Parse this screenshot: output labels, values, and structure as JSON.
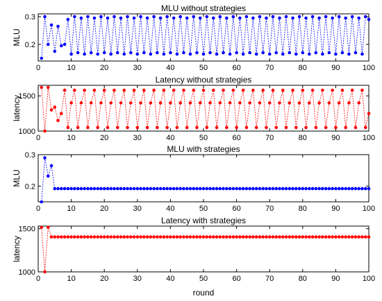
{
  "figure": {
    "xlabel": "round"
  },
  "chart_data": [
    {
      "type": "line",
      "title": "MLU without strategies",
      "ylabel": "MLU",
      "xlabel": "",
      "color": "#0000ff",
      "xlim": [
        0,
        100
      ],
      "ylim": [
        0.14,
        0.31
      ],
      "xticks": [
        0,
        10,
        20,
        30,
        40,
        50,
        60,
        70,
        80,
        90,
        100
      ],
      "yticks": [
        0.2,
        0.3
      ],
      "yticklabels": [
        "0.2",
        "0.3"
      ],
      "x": [
        1,
        2,
        3,
        4,
        5,
        6,
        7,
        8,
        9,
        10,
        11,
        12,
        13,
        14,
        15,
        16,
        17,
        18,
        19,
        20,
        21,
        22,
        23,
        24,
        25,
        26,
        27,
        28,
        29,
        30,
        31,
        32,
        33,
        34,
        35,
        36,
        37,
        38,
        39,
        40,
        41,
        42,
        43,
        44,
        45,
        46,
        47,
        48,
        49,
        50,
        51,
        52,
        53,
        54,
        55,
        56,
        57,
        58,
        59,
        60,
        61,
        62,
        63,
        64,
        65,
        66,
        67,
        68,
        69,
        70,
        71,
        72,
        73,
        74,
        75,
        76,
        77,
        78,
        79,
        80,
        81,
        82,
        83,
        84,
        85,
        86,
        87,
        88,
        89,
        90,
        91,
        92,
        93,
        94,
        95,
        96,
        97,
        98,
        99,
        100
      ],
      "values": [
        0.15,
        0.3,
        0.2,
        0.27,
        0.175,
        0.265,
        0.195,
        0.2,
        0.29,
        0.165,
        0.3,
        0.17,
        0.295,
        0.165,
        0.3,
        0.17,
        0.295,
        0.165,
        0.3,
        0.17,
        0.295,
        0.165,
        0.3,
        0.17,
        0.295,
        0.165,
        0.3,
        0.17,
        0.295,
        0.165,
        0.3,
        0.17,
        0.295,
        0.165,
        0.3,
        0.17,
        0.295,
        0.165,
        0.3,
        0.17,
        0.295,
        0.165,
        0.3,
        0.17,
        0.295,
        0.165,
        0.3,
        0.17,
        0.295,
        0.165,
        0.3,
        0.17,
        0.295,
        0.165,
        0.3,
        0.17,
        0.295,
        0.165,
        0.3,
        0.17,
        0.295,
        0.165,
        0.3,
        0.17,
        0.295,
        0.165,
        0.3,
        0.17,
        0.295,
        0.165,
        0.3,
        0.17,
        0.295,
        0.165,
        0.3,
        0.17,
        0.295,
        0.165,
        0.3,
        0.17,
        0.295,
        0.165,
        0.3,
        0.17,
        0.295,
        0.165,
        0.3,
        0.17,
        0.295,
        0.165,
        0.3,
        0.17,
        0.295,
        0.165,
        0.3,
        0.17,
        0.295,
        0.165,
        0.3,
        0.29
      ]
    },
    {
      "type": "line",
      "title": "Latency without strategies",
      "ylabel": "latency",
      "xlabel": "",
      "color": "#ff0000",
      "xlim": [
        0,
        100
      ],
      "ylim": [
        1000,
        1650
      ],
      "xticks": [
        0,
        10,
        20,
        30,
        40,
        50,
        60,
        70,
        80,
        90,
        100
      ],
      "yticks": [
        1000,
        1500
      ],
      "yticklabels": [
        "1000",
        "1500"
      ],
      "x": [
        1,
        2,
        3,
        4,
        5,
        6,
        7,
        8,
        9,
        10,
        11,
        12,
        13,
        14,
        15,
        16,
        17,
        18,
        19,
        20,
        21,
        22,
        23,
        24,
        25,
        26,
        27,
        28,
        29,
        30,
        31,
        32,
        33,
        34,
        35,
        36,
        37,
        38,
        39,
        40,
        41,
        42,
        43,
        44,
        45,
        46,
        47,
        48,
        49,
        50,
        51,
        52,
        53,
        54,
        55,
        56,
        57,
        58,
        59,
        60,
        61,
        62,
        63,
        64,
        65,
        66,
        67,
        68,
        69,
        70,
        71,
        72,
        73,
        74,
        75,
        76,
        77,
        78,
        79,
        80,
        81,
        82,
        83,
        84,
        85,
        86,
        87,
        88,
        89,
        90,
        91,
        92,
        93,
        94,
        95,
        96,
        97,
        98,
        99,
        100
      ],
      "values": [
        1620,
        1000,
        1620,
        1300,
        1340,
        1150,
        1250,
        1580,
        1050,
        1400,
        1580,
        1050,
        1400,
        1580,
        1050,
        1400,
        1580,
        1050,
        1400,
        1580,
        1050,
        1400,
        1580,
        1050,
        1400,
        1580,
        1050,
        1400,
        1580,
        1050,
        1400,
        1580,
        1050,
        1400,
        1580,
        1050,
        1400,
        1580,
        1050,
        1400,
        1580,
        1050,
        1400,
        1580,
        1050,
        1400,
        1580,
        1050,
        1400,
        1580,
        1050,
        1400,
        1580,
        1050,
        1400,
        1580,
        1050,
        1400,
        1580,
        1050,
        1400,
        1580,
        1050,
        1400,
        1580,
        1050,
        1400,
        1580,
        1050,
        1400,
        1580,
        1050,
        1400,
        1580,
        1050,
        1400,
        1580,
        1050,
        1400,
        1580,
        1050,
        1400,
        1580,
        1050,
        1400,
        1580,
        1050,
        1400,
        1580,
        1050,
        1400,
        1580,
        1050,
        1400,
        1580,
        1050,
        1400,
        1580,
        1050,
        1250
      ]
    },
    {
      "type": "line",
      "title": "MLU with strategies",
      "ylabel": "MLU",
      "xlabel": "",
      "color": "#0000ff",
      "xlim": [
        0,
        100
      ],
      "ylim": [
        0.15,
        0.3
      ],
      "xticks": [
        0,
        10,
        20,
        30,
        40,
        50,
        60,
        70,
        80,
        90,
        100
      ],
      "yticks": [
        0.2,
        0.3
      ],
      "yticklabels": [
        "0.2",
        "0.3"
      ],
      "x": [
        1,
        2,
        3,
        4,
        5,
        6,
        7,
        8,
        9,
        10,
        11,
        12,
        13,
        14,
        15,
        16,
        17,
        18,
        19,
        20,
        21,
        22,
        23,
        24,
        25,
        26,
        27,
        28,
        29,
        30,
        31,
        32,
        33,
        34,
        35,
        36,
        37,
        38,
        39,
        40,
        41,
        42,
        43,
        44,
        45,
        46,
        47,
        48,
        49,
        50,
        51,
        52,
        53,
        54,
        55,
        56,
        57,
        58,
        59,
        60,
        61,
        62,
        63,
        64,
        65,
        66,
        67,
        68,
        69,
        70,
        71,
        72,
        73,
        74,
        75,
        76,
        77,
        78,
        79,
        80,
        81,
        82,
        83,
        84,
        85,
        86,
        87,
        88,
        89,
        90,
        91,
        92,
        93,
        94,
        95,
        96,
        97,
        98,
        99,
        100
      ],
      "values": [
        0.15,
        0.29,
        0.232,
        0.265,
        0.192,
        0.192,
        0.192,
        0.192,
        0.192,
        0.192,
        0.192,
        0.192,
        0.192,
        0.192,
        0.192,
        0.192,
        0.192,
        0.192,
        0.192,
        0.192,
        0.192,
        0.192,
        0.192,
        0.192,
        0.192,
        0.192,
        0.192,
        0.192,
        0.192,
        0.192,
        0.192,
        0.192,
        0.192,
        0.192,
        0.192,
        0.192,
        0.192,
        0.192,
        0.192,
        0.192,
        0.192,
        0.192,
        0.192,
        0.192,
        0.192,
        0.192,
        0.192,
        0.192,
        0.192,
        0.192,
        0.192,
        0.192,
        0.192,
        0.192,
        0.192,
        0.192,
        0.192,
        0.192,
        0.192,
        0.192,
        0.192,
        0.192,
        0.192,
        0.192,
        0.192,
        0.192,
        0.192,
        0.192,
        0.192,
        0.192,
        0.192,
        0.192,
        0.192,
        0.192,
        0.192,
        0.192,
        0.192,
        0.192,
        0.192,
        0.192,
        0.192,
        0.192,
        0.192,
        0.192,
        0.192,
        0.192,
        0.192,
        0.192,
        0.192,
        0.192,
        0.192,
        0.192,
        0.192,
        0.192,
        0.192,
        0.192,
        0.192,
        0.192,
        0.192,
        0.192
      ]
    },
    {
      "type": "line",
      "title": "Latency with strategies",
      "ylabel": "latency",
      "xlabel": "round",
      "color": "#ff0000",
      "xlim": [
        0,
        100
      ],
      "ylim": [
        1000,
        1530
      ],
      "xticks": [
        0,
        10,
        20,
        30,
        40,
        50,
        60,
        70,
        80,
        90,
        100
      ],
      "yticks": [
        1000,
        1500
      ],
      "yticklabels": [
        "1000",
        "1500"
      ],
      "x": [
        1,
        2,
        3,
        4,
        5,
        6,
        7,
        8,
        9,
        10,
        11,
        12,
        13,
        14,
        15,
        16,
        17,
        18,
        19,
        20,
        21,
        22,
        23,
        24,
        25,
        26,
        27,
        28,
        29,
        30,
        31,
        32,
        33,
        34,
        35,
        36,
        37,
        38,
        39,
        40,
        41,
        42,
        43,
        44,
        45,
        46,
        47,
        48,
        49,
        50,
        51,
        52,
        53,
        54,
        55,
        56,
        57,
        58,
        59,
        60,
        61,
        62,
        63,
        64,
        65,
        66,
        67,
        68,
        69,
        70,
        71,
        72,
        73,
        74,
        75,
        76,
        77,
        78,
        79,
        80,
        81,
        82,
        83,
        84,
        85,
        86,
        87,
        88,
        89,
        90,
        91,
        92,
        93,
        94,
        95,
        96,
        97,
        98,
        99,
        100
      ],
      "values": [
        1515,
        1000,
        1515,
        1405,
        1405,
        1405,
        1405,
        1405,
        1405,
        1405,
        1405,
        1405,
        1405,
        1405,
        1405,
        1405,
        1405,
        1405,
        1405,
        1405,
        1405,
        1405,
        1405,
        1405,
        1405,
        1405,
        1405,
        1405,
        1405,
        1405,
        1405,
        1405,
        1405,
        1405,
        1405,
        1405,
        1405,
        1405,
        1405,
        1405,
        1405,
        1405,
        1405,
        1405,
        1405,
        1405,
        1405,
        1405,
        1405,
        1405,
        1405,
        1405,
        1405,
        1405,
        1405,
        1405,
        1405,
        1405,
        1405,
        1405,
        1405,
        1405,
        1405,
        1405,
        1405,
        1405,
        1405,
        1405,
        1405,
        1405,
        1405,
        1405,
        1405,
        1405,
        1405,
        1405,
        1405,
        1405,
        1405,
        1405,
        1405,
        1405,
        1405,
        1405,
        1405,
        1405,
        1405,
        1405,
        1405,
        1405,
        1405,
        1405,
        1405,
        1405,
        1405,
        1405,
        1405,
        1405,
        1405,
        1405
      ]
    }
  ]
}
